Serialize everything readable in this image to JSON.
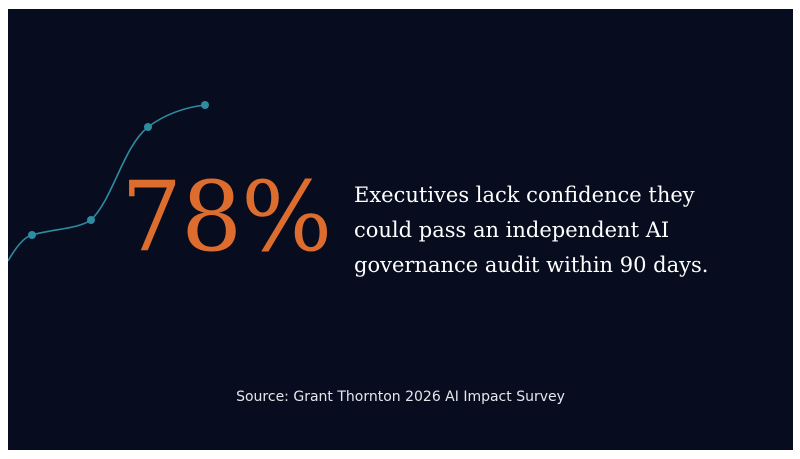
{
  "colors": {
    "background": "#070d1e",
    "accent": "#dd6c2f",
    "line": "#2e8ba0"
  },
  "stat": {
    "number": "78",
    "percent_sign": "%"
  },
  "headline": {
    "lines": [
      "Executives lack confidence they",
      "could pass an independent AI",
      "governance audit within 90 days."
    ]
  },
  "source": "Source: Grant Thornton 2026 AI Impact Survey"
}
